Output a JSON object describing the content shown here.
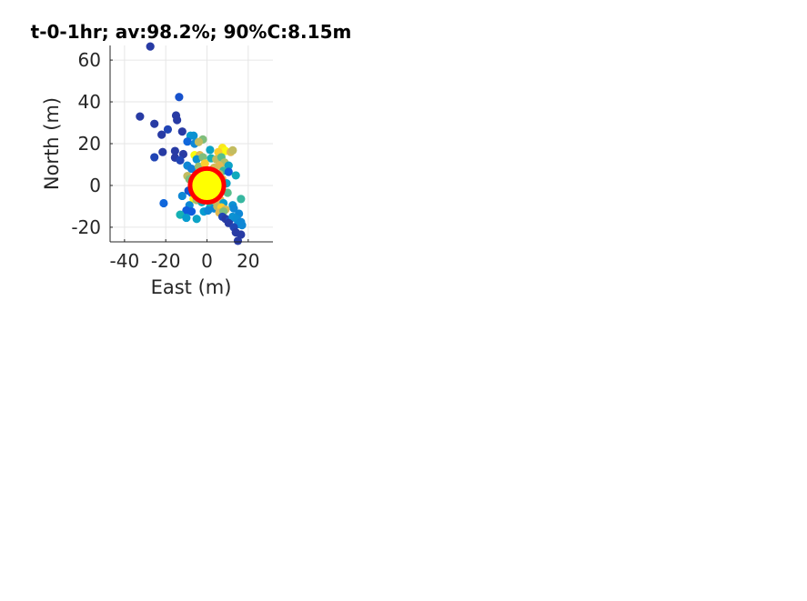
{
  "chart_data": {
    "type": "scatter",
    "title": "t-0-1hr; av:98.2%; 90%C:8.15m",
    "xlabel": "East (m)",
    "ylabel": "North (m)",
    "xlim": [
      -47,
      32
    ],
    "ylim": [
      -27,
      67
    ],
    "xticks": [
      -40,
      -20,
      0,
      20
    ],
    "xtick_labels": [
      "-40",
      "-20",
      "0",
      "20"
    ],
    "yticks": [
      -20,
      0,
      20,
      40,
      60
    ],
    "ytick_labels": [
      "-20",
      "0",
      "20",
      "40",
      "60"
    ],
    "grid": true,
    "colormap": "parula",
    "circle": {
      "center": [
        0,
        0
      ],
      "radius_m": 8.15,
      "edge_color": "#ff0000",
      "face_color": "#ffff00"
    },
    "points": [
      {
        "x": -27.5,
        "y": 66.5,
        "c": 0.05
      },
      {
        "x": -13.5,
        "y": 42.3,
        "c": 0.12
      },
      {
        "x": -32.5,
        "y": 33.0,
        "c": 0.05
      },
      {
        "x": -15.0,
        "y": 33.5,
        "c": 0.05
      },
      {
        "x": -14.5,
        "y": 31.3,
        "c": 0.05
      },
      {
        "x": -25.5,
        "y": 29.5,
        "c": 0.05
      },
      {
        "x": -19.0,
        "y": 26.8,
        "c": 0.08
      },
      {
        "x": -12.0,
        "y": 25.8,
        "c": 0.05
      },
      {
        "x": -22.0,
        "y": 24.3,
        "c": 0.05
      },
      {
        "x": -8.0,
        "y": 23.8,
        "c": 0.45
      },
      {
        "x": -6.5,
        "y": 23.8,
        "c": 0.4
      },
      {
        "x": -2.0,
        "y": 22.0,
        "c": 0.75
      },
      {
        "x": -9.5,
        "y": 21.0,
        "c": 0.2
      },
      {
        "x": -6.0,
        "y": 20.0,
        "c": 0.35
      },
      {
        "x": -4.0,
        "y": 20.8,
        "c": 0.85
      },
      {
        "x": 1.5,
        "y": 17.0,
        "c": 0.5
      },
      {
        "x": 7.5,
        "y": 18.0,
        "c": 0.98
      },
      {
        "x": 9.0,
        "y": 16.5,
        "c": 1.0
      },
      {
        "x": 11.5,
        "y": 16.0,
        "c": 0.9
      },
      {
        "x": 12.5,
        "y": 16.8,
        "c": 0.85
      },
      {
        "x": 5.5,
        "y": 16.0,
        "c": 0.95
      },
      {
        "x": -15.5,
        "y": 16.5,
        "c": 0.05
      },
      {
        "x": -21.5,
        "y": 16.0,
        "c": 0.05
      },
      {
        "x": -11.5,
        "y": 15.0,
        "c": 0.05
      },
      {
        "x": -25.5,
        "y": 13.5,
        "c": 0.08
      },
      {
        "x": -15.5,
        "y": 13.3,
        "c": 0.05
      },
      {
        "x": -13.0,
        "y": 12.0,
        "c": 0.08
      },
      {
        "x": -6.0,
        "y": 14.5,
        "c": 1.0
      },
      {
        "x": -3.5,
        "y": 14.5,
        "c": 0.9
      },
      {
        "x": -5.0,
        "y": 12.5,
        "c": 0.4
      },
      {
        "x": -2.0,
        "y": 13.5,
        "c": 0.75
      },
      {
        "x": 2.0,
        "y": 13.0,
        "c": 0.6
      },
      {
        "x": 4.5,
        "y": 12.5,
        "c": 0.85
      },
      {
        "x": 7.0,
        "y": 13.5,
        "c": 0.7
      },
      {
        "x": 8.5,
        "y": 11.0,
        "c": 0.82
      },
      {
        "x": 6.0,
        "y": 9.5,
        "c": 0.9
      },
      {
        "x": 10.5,
        "y": 9.5,
        "c": 0.5
      },
      {
        "x": -9.5,
        "y": 9.5,
        "c": 0.35
      },
      {
        "x": -7.5,
        "y": 8.0,
        "c": 0.3
      },
      {
        "x": -4.0,
        "y": 9.0,
        "c": 0.78
      },
      {
        "x": -1.0,
        "y": 10.5,
        "c": 0.95
      },
      {
        "x": 3.5,
        "y": 8.5,
        "c": 0.88
      },
      {
        "x": 8.0,
        "y": 7.0,
        "c": 0.65
      },
      {
        "x": 10.5,
        "y": 6.5,
        "c": 0.15
      },
      {
        "x": 14.0,
        "y": 4.8,
        "c": 0.55
      },
      {
        "x": -9.5,
        "y": 4.5,
        "c": 0.85
      },
      {
        "x": -8.5,
        "y": 3.0,
        "c": 0.75
      },
      {
        "x": -7.0,
        "y": 2.5,
        "c": 0.55
      },
      {
        "x": 7.5,
        "y": 3.0,
        "c": 0.9
      },
      {
        "x": 9.5,
        "y": 1.0,
        "c": 0.5
      },
      {
        "x": -9.0,
        "y": -2.5,
        "c": 0.12
      },
      {
        "x": -7.5,
        "y": -3.5,
        "c": 0.15
      },
      {
        "x": -12.0,
        "y": -5.0,
        "c": 0.35
      },
      {
        "x": 10.0,
        "y": -3.5,
        "c": 0.7
      },
      {
        "x": 16.5,
        "y": -6.5,
        "c": 0.65
      },
      {
        "x": -6.5,
        "y": -6.5,
        "c": 1.0
      },
      {
        "x": -5.0,
        "y": -7.0,
        "c": 0.8
      },
      {
        "x": -2.5,
        "y": -8.0,
        "c": 0.55
      },
      {
        "x": 1.5,
        "y": -8.0,
        "c": 0.45
      },
      {
        "x": 4.0,
        "y": -7.5,
        "c": 0.92
      },
      {
        "x": 6.5,
        "y": -7.0,
        "c": 0.9
      },
      {
        "x": 8.0,
        "y": -8.5,
        "c": 0.45
      },
      {
        "x": -21.0,
        "y": -8.5,
        "c": 0.2
      },
      {
        "x": -8.5,
        "y": -9.5,
        "c": 0.35
      },
      {
        "x": 1.5,
        "y": -10.5,
        "c": 0.6
      },
      {
        "x": 3.5,
        "y": -11.0,
        "c": 0.35
      },
      {
        "x": 5.0,
        "y": -10.0,
        "c": 0.85
      },
      {
        "x": 7.0,
        "y": -10.5,
        "c": 0.95
      },
      {
        "x": 9.0,
        "y": -11.5,
        "c": 0.88
      },
      {
        "x": 12.5,
        "y": -9.5,
        "c": 0.4
      },
      {
        "x": 13.0,
        "y": -11.0,
        "c": 0.35
      },
      {
        "x": -10.0,
        "y": -12.0,
        "c": 0.15
      },
      {
        "x": -7.5,
        "y": -12.5,
        "c": 0.15
      },
      {
        "x": -1.5,
        "y": -12.5,
        "c": 0.45
      },
      {
        "x": 0.5,
        "y": -12.0,
        "c": 0.35
      },
      {
        "x": 6.0,
        "y": -13.0,
        "c": 0.9
      },
      {
        "x": 8.0,
        "y": -12.5,
        "c": 0.75
      },
      {
        "x": 15.5,
        "y": -13.5,
        "c": 0.35
      },
      {
        "x": -13.0,
        "y": -14.0,
        "c": 0.6
      },
      {
        "x": -10.0,
        "y": -15.5,
        "c": 0.45
      },
      {
        "x": -5.0,
        "y": -16.0,
        "c": 0.5
      },
      {
        "x": 7.5,
        "y": -15.0,
        "c": 0.08
      },
      {
        "x": 9.0,
        "y": -16.0,
        "c": 0.05
      },
      {
        "x": 11.0,
        "y": -16.5,
        "c": 0.1
      },
      {
        "x": 12.5,
        "y": -15.0,
        "c": 0.4
      },
      {
        "x": 14.5,
        "y": -16.0,
        "c": 0.38
      },
      {
        "x": 16.5,
        "y": -17.5,
        "c": 0.35
      },
      {
        "x": 10.5,
        "y": -18.0,
        "c": 0.05
      },
      {
        "x": 15.0,
        "y": -18.5,
        "c": 0.35
      },
      {
        "x": 17.0,
        "y": -19.0,
        "c": 0.35
      },
      {
        "x": 13.0,
        "y": -20.0,
        "c": 0.08
      },
      {
        "x": 14.0,
        "y": -22.5,
        "c": 0.05
      },
      {
        "x": 16.5,
        "y": -23.5,
        "c": 0.05
      },
      {
        "x": 15.0,
        "y": -26.5,
        "c": 0.05
      },
      {
        "x": 3.0,
        "y": 5.0,
        "c": 0.95
      },
      {
        "x": -3.0,
        "y": 6.0,
        "c": 0.92
      },
      {
        "x": -5.0,
        "y": 1.0,
        "c": 0.88
      },
      {
        "x": 5.0,
        "y": -3.0,
        "c": 0.9
      },
      {
        "x": 2.0,
        "y": -5.0,
        "c": 0.97
      },
      {
        "x": -2.0,
        "y": -5.5,
        "c": 0.93
      },
      {
        "x": 0.0,
        "y": 7.0,
        "c": 0.9
      },
      {
        "x": 6.0,
        "y": 5.5,
        "c": 0.82
      },
      {
        "x": -4.0,
        "y": -3.0,
        "c": 0.6
      }
    ]
  }
}
